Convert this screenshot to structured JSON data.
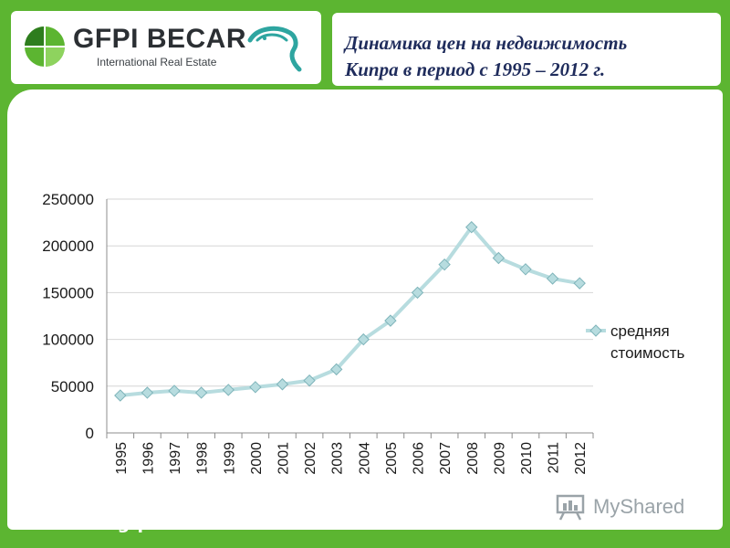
{
  "brand": {
    "name": "GFPI BECAR",
    "tagline": "International Real Estate"
  },
  "title": {
    "line1": "Динамика цен на недвижимость",
    "line2": "Кипра в период с 1995 – 2012 г."
  },
  "footer": {
    "url": "www.gfpi.ru"
  },
  "watermark": {
    "text": "MyShared"
  },
  "colors": {
    "brand_green": "#5cb531",
    "line": "#b7dcdf",
    "marker": "#b7dcdf",
    "marker_stroke": "#7fb4ba",
    "grid": "#d6d6d6",
    "title": "#1f2c5c"
  },
  "chart_data": {
    "type": "line",
    "categories": [
      "1995",
      "1996",
      "1997",
      "1998",
      "1999",
      "2000",
      "2001",
      "2002",
      "2003",
      "2004",
      "2005",
      "2006",
      "2007",
      "2008",
      "2009",
      "2010",
      "2011",
      "2012"
    ],
    "series": [
      {
        "name": "средняя стоимость",
        "values": [
          40000,
          43000,
          45000,
          43000,
          46000,
          49000,
          52000,
          56000,
          68000,
          100000,
          120000,
          150000,
          180000,
          220000,
          187000,
          175000,
          165000,
          160000
        ]
      }
    ],
    "yticks": [
      "0",
      "50000",
      "100000",
      "150000",
      "200000",
      "250000"
    ],
    "ylim": [
      0,
      250000
    ],
    "grid": true,
    "legend_position": "right"
  }
}
